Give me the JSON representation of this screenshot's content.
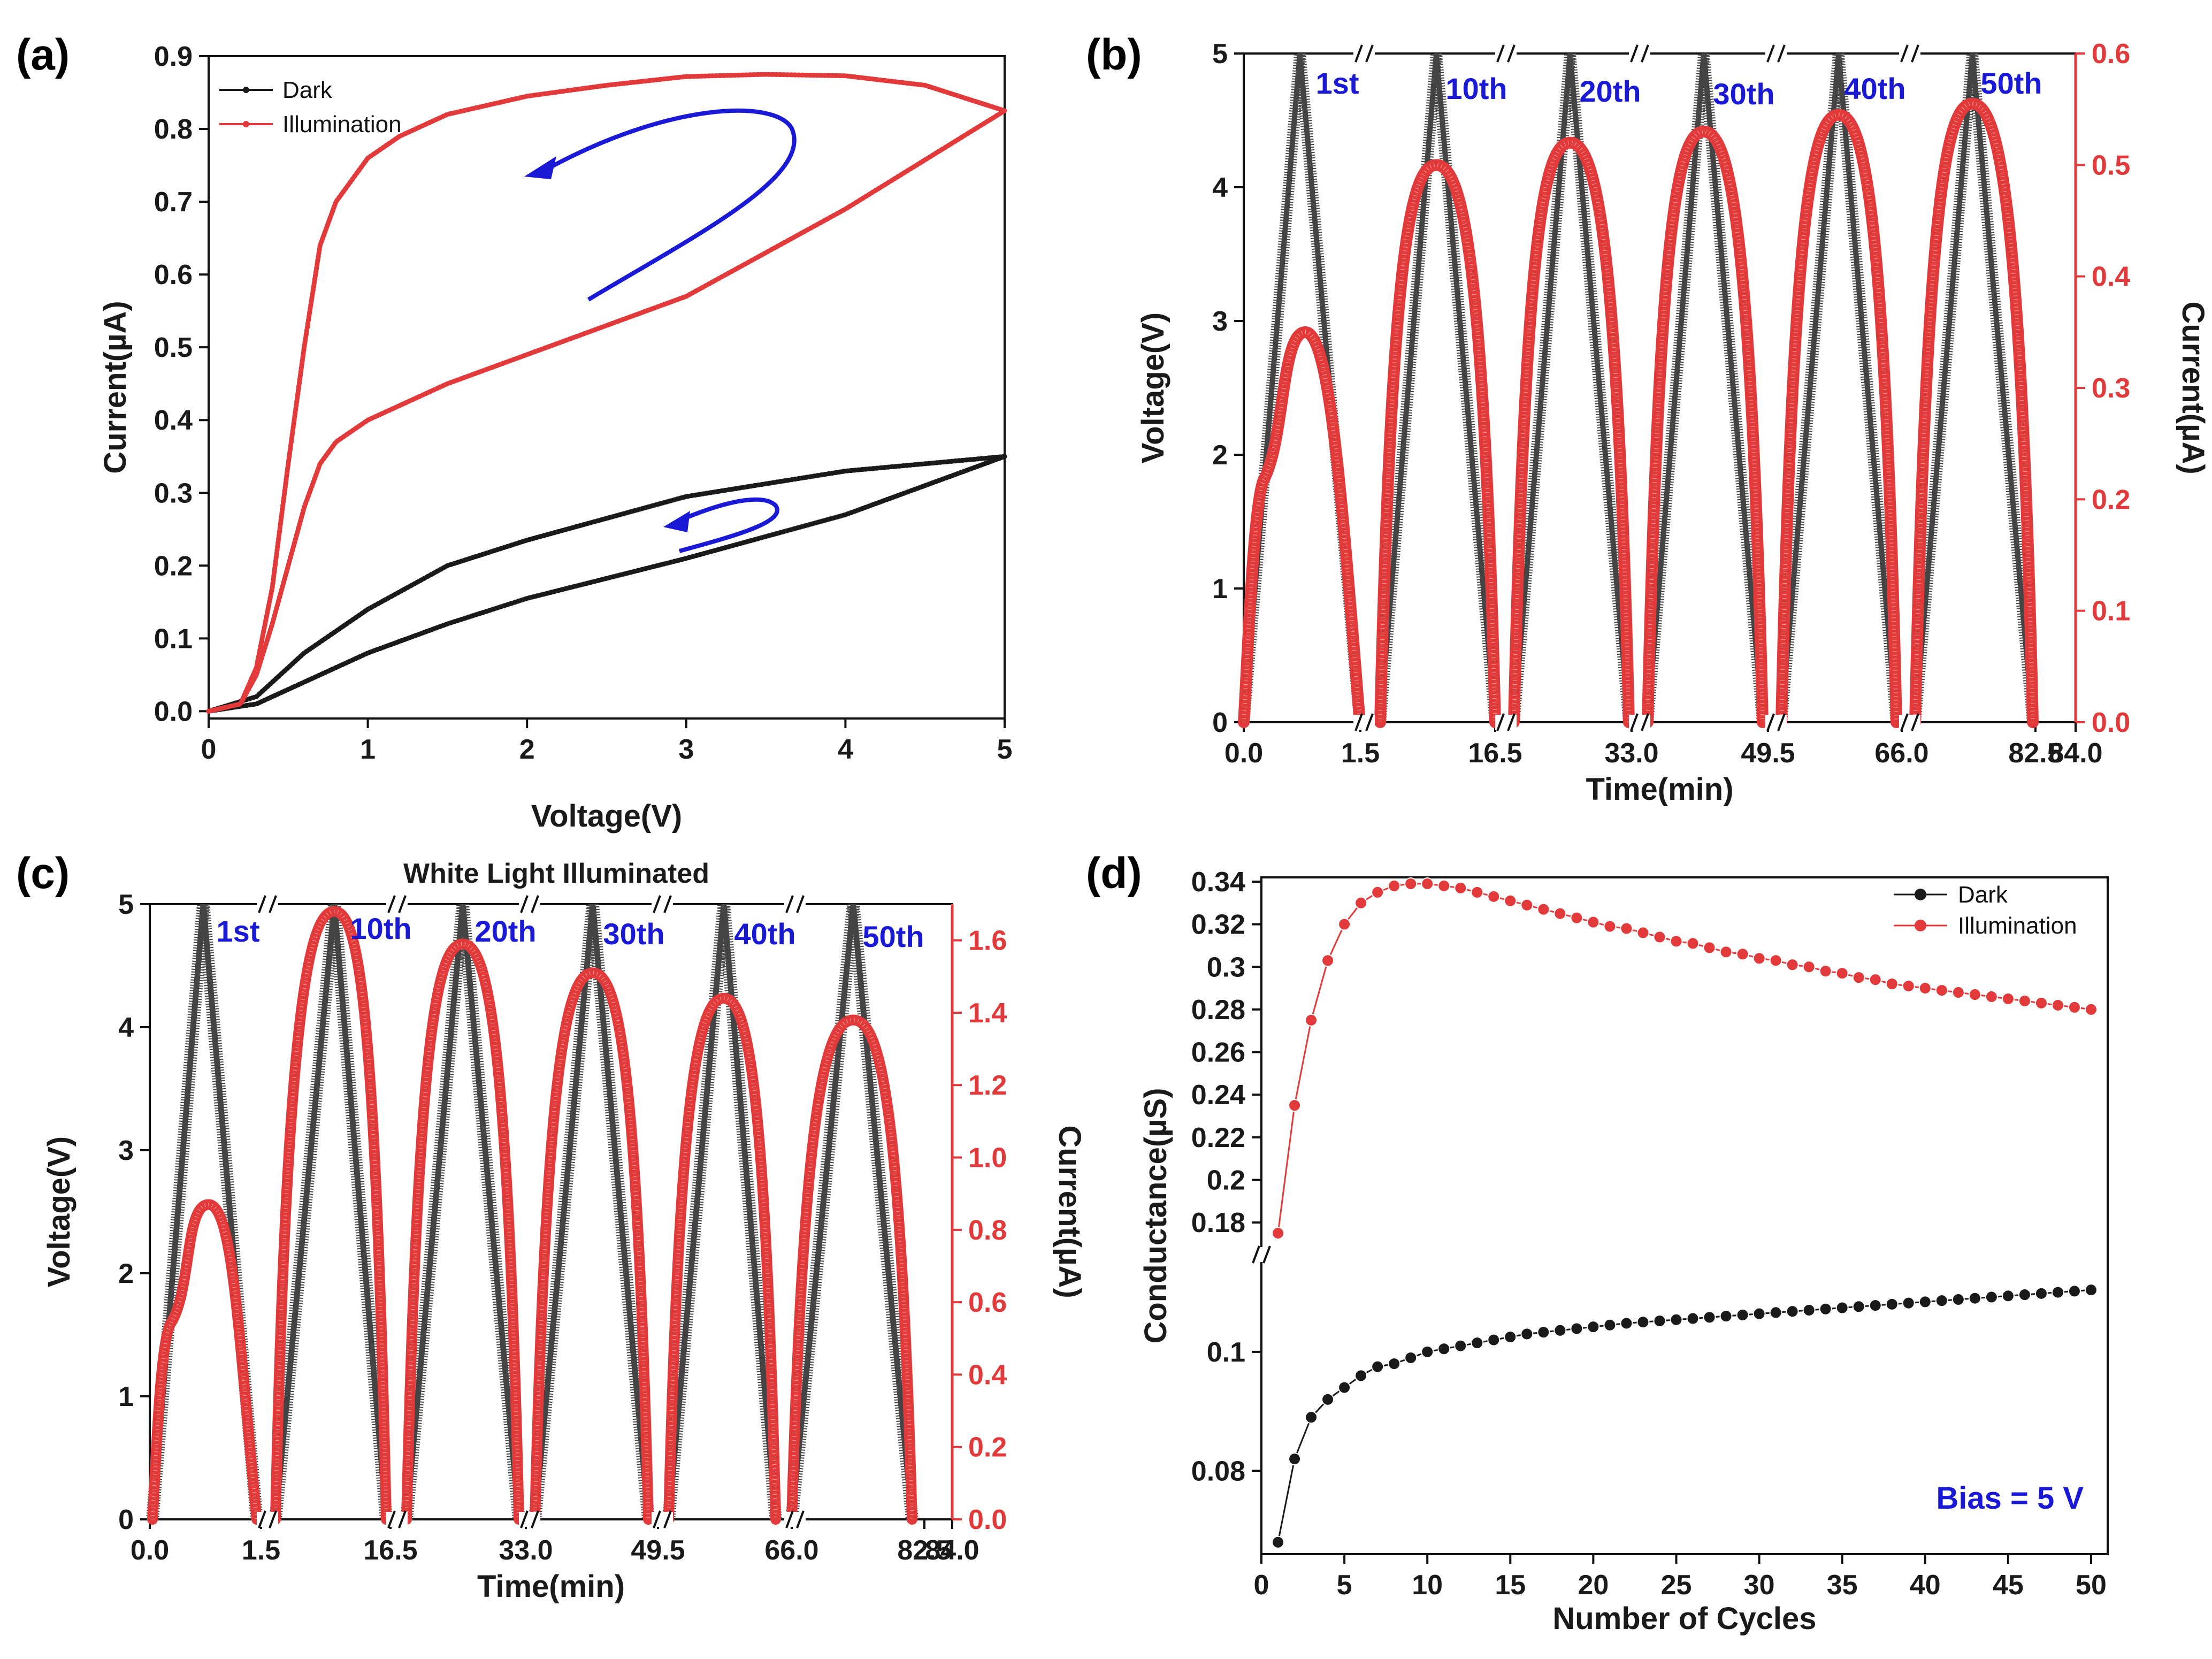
{
  "colors": {
    "dark": "#1a1a1a",
    "dark_thick": "#444444",
    "light": "#e23a3a",
    "arrow": "#1a1ad6",
    "right_axis": "#e23a3a"
  },
  "chart_data": [
    {
      "id": "a",
      "panel_label": "(a)",
      "type": "line",
      "title": "",
      "xlabel": "Voltage(V)",
      "ylabel": "Current(µA)",
      "xlim": [
        0,
        5
      ],
      "ylim": [
        -0.01,
        0.9
      ],
      "xticks": [
        "0",
        "1",
        "2",
        "3",
        "4",
        "5"
      ],
      "yticks": [
        "0.0",
        "0.1",
        "0.2",
        "0.3",
        "0.4",
        "0.5",
        "0.6",
        "0.7",
        "0.8",
        "0.9"
      ],
      "legend": [
        "Dark",
        "Illumination"
      ],
      "series": [
        {
          "name": "Dark",
          "forward": {
            "x": [
              0,
              0.3,
              0.6,
              1,
              1.5,
              2,
              3,
              4,
              5
            ],
            "y": [
              0,
              0.01,
              0.04,
              0.08,
              0.12,
              0.155,
              0.21,
              0.27,
              0.35
            ]
          },
          "reverse": {
            "x": [
              5,
              4,
              3,
              2,
              1.5,
              1,
              0.6,
              0.3,
              0
            ],
            "y": [
              0.35,
              0.33,
              0.295,
              0.235,
              0.2,
              0.14,
              0.08,
              0.02,
              0
            ]
          }
        },
        {
          "name": "Illumination",
          "forward": {
            "x": [
              0,
              0.2,
              0.3,
              0.4,
              0.5,
              0.6,
              0.7,
              0.8,
              1,
              1.5,
              2,
              3,
              4,
              5
            ],
            "y": [
              0,
              0.01,
              0.05,
              0.12,
              0.2,
              0.28,
              0.34,
              0.37,
              0.4,
              0.45,
              0.49,
              0.57,
              0.69,
              0.825
            ]
          },
          "reverse": {
            "x": [
              5,
              4.5,
              4,
              3.5,
              3,
              2.5,
              2,
              1.5,
              1.2,
              1,
              0.8,
              0.7,
              0.6,
              0.5,
              0.4,
              0.3,
              0.2,
              0
            ],
            "y": [
              0.825,
              0.86,
              0.873,
              0.875,
              0.872,
              0.86,
              0.845,
              0.82,
              0.79,
              0.76,
              0.7,
              0.64,
              0.5,
              0.34,
              0.17,
              0.06,
              0.01,
              0
            ]
          }
        }
      ]
    },
    {
      "id": "b",
      "panel_label": "(b)",
      "type": "line",
      "title": "",
      "xlabel": "Time(min)",
      "ylabel": "Voltage(V)",
      "y2label": "Current(µA)",
      "ylim": [
        0,
        5
      ],
      "y2lim": [
        0,
        0.6
      ],
      "xticks": [
        "0.0",
        "1.5",
        "16.5",
        "33.0",
        "49.5",
        "66.0",
        "82.5",
        "84.0"
      ],
      "yticks": [
        "0",
        "1",
        "2",
        "3",
        "4",
        "5"
      ],
      "y2ticks": [
        "0.0",
        "0.1",
        "0.2",
        "0.3",
        "0.4",
        "0.5",
        "0.6"
      ],
      "cycles": [
        "1st",
        "10th",
        "20th",
        "30th",
        "40th",
        "50th"
      ],
      "voltage_peak": [
        5,
        5,
        5,
        5,
        5,
        5
      ],
      "current_peak": [
        0.35,
        0.5,
        0.52,
        0.53,
        0.545,
        0.555
      ]
    },
    {
      "id": "c",
      "panel_label": "(c)",
      "type": "line",
      "title": "White Light Illuminated",
      "xlabel": "Time(min)",
      "ylabel": "Voltage(V)",
      "y2label": "Current(µA)",
      "ylim": [
        0,
        5
      ],
      "y2lim": [
        0,
        1.7
      ],
      "xticks": [
        "0.0",
        "1.5",
        "16.5",
        "33.0",
        "49.5",
        "66.0",
        "82.5",
        "84.0"
      ],
      "yticks": [
        "0",
        "1",
        "2",
        "3",
        "4",
        "5"
      ],
      "y2ticks": [
        "0.0",
        "0.2",
        "0.4",
        "0.6",
        "0.8",
        "1.0",
        "1.2",
        "1.4",
        "1.6"
      ],
      "cycles": [
        "1st",
        "10th",
        "20th",
        "30th",
        "40th",
        "50th"
      ],
      "voltage_peak": [
        5,
        5,
        5,
        5,
        5,
        5
      ],
      "current_peak": [
        0.87,
        1.68,
        1.59,
        1.51,
        1.44,
        1.38
      ]
    },
    {
      "id": "d",
      "panel_label": "(d)",
      "type": "line",
      "title": "",
      "xlabel": "Number of Cycles",
      "ylabel": "Conductance(µS)",
      "annotation": "Bias = 5 V",
      "xlim": [
        0,
        51
      ],
      "ylim": [
        0.066,
        0.342
      ],
      "axis_break": [
        0.115,
        0.17
      ],
      "xticks": [
        "0",
        "5",
        "10",
        "15",
        "20",
        "25",
        "30",
        "35",
        "40",
        "45",
        "50"
      ],
      "yticks": [
        "0.08",
        "0.1",
        "0.18",
        "0.2",
        "0.22",
        "0.24",
        "0.26",
        "0.28",
        "0.3",
        "0.32",
        "0.34"
      ],
      "legend": [
        "Dark",
        "Illumination"
      ],
      "x": [
        1,
        2,
        3,
        4,
        5,
        6,
        7,
        8,
        9,
        10,
        11,
        12,
        13,
        14,
        15,
        16,
        17,
        18,
        19,
        20,
        21,
        22,
        23,
        24,
        25,
        26,
        27,
        28,
        29,
        30,
        31,
        32,
        33,
        34,
        35,
        36,
        37,
        38,
        39,
        40,
        41,
        42,
        43,
        44,
        45,
        46,
        47,
        48,
        49,
        50
      ],
      "series": [
        {
          "name": "Dark",
          "values": [
            0.068,
            0.082,
            0.089,
            0.092,
            0.094,
            0.096,
            0.0975,
            0.098,
            0.099,
            0.1,
            0.1005,
            0.101,
            0.1015,
            0.102,
            0.1025,
            0.103,
            0.1033,
            0.1036,
            0.1039,
            0.1042,
            0.1045,
            0.1048,
            0.105,
            0.1052,
            0.1054,
            0.1056,
            0.1058,
            0.106,
            0.1062,
            0.1064,
            0.1066,
            0.1068,
            0.107,
            0.1072,
            0.1074,
            0.1076,
            0.1078,
            0.108,
            0.1082,
            0.1084,
            0.1086,
            0.1088,
            0.109,
            0.1092,
            0.1094,
            0.1096,
            0.1098,
            0.11,
            0.1102,
            0.1104
          ]
        },
        {
          "name": "Illumination",
          "values": [
            0.175,
            0.235,
            0.275,
            0.303,
            0.32,
            0.33,
            0.335,
            0.338,
            0.339,
            0.339,
            0.338,
            0.337,
            0.335,
            0.333,
            0.331,
            0.329,
            0.327,
            0.325,
            0.323,
            0.321,
            0.319,
            0.318,
            0.316,
            0.314,
            0.312,
            0.311,
            0.309,
            0.307,
            0.306,
            0.304,
            0.303,
            0.301,
            0.3,
            0.298,
            0.297,
            0.295,
            0.294,
            0.292,
            0.291,
            0.29,
            0.289,
            0.288,
            0.287,
            0.286,
            0.285,
            0.284,
            0.283,
            0.282,
            0.281,
            0.28
          ]
        }
      ]
    }
  ]
}
